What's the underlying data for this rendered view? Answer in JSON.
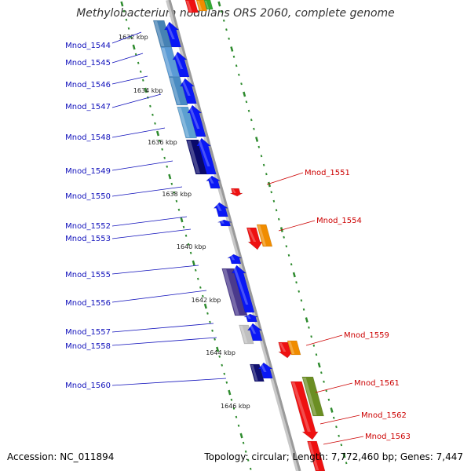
{
  "title": "Methylobacterium nodulans ORS 2060, complete genome",
  "footer": {
    "accession": "Accession: NC_011894",
    "summary": "Topology: circular; Length: 7,772,460 bp; Genes: 7,447"
  },
  "colors": {
    "reverse_label": "#1010bb",
    "forward_label": "#cc0000",
    "backbone": "#9a9a9a",
    "tick": "#2e8b2e"
  },
  "kbp_ticks": [
    "1632 kbp",
    "1634 kbp",
    "1636 kbp",
    "1638 kbp",
    "1640 kbp",
    "1642 kbp",
    "1644 kbp",
    "1646 kbp"
  ],
  "reverse_genes": [
    "Mnod_1544",
    "Mnod_1545",
    "Mnod_1546",
    "Mnod_1547",
    "Mnod_1548",
    "Mnod_1549",
    "Mnod_1550",
    "Mnod_1552",
    "Mnod_1553",
    "Mnod_1555",
    "Mnod_1556",
    "Mnod_1557",
    "Mnod_1558",
    "Mnod_1560"
  ],
  "forward_genes": [
    "Mnod_1551",
    "Mnod_1554",
    "Mnod_1559",
    "Mnod_1561",
    "Mnod_1562",
    "Mnod_1563"
  ]
}
